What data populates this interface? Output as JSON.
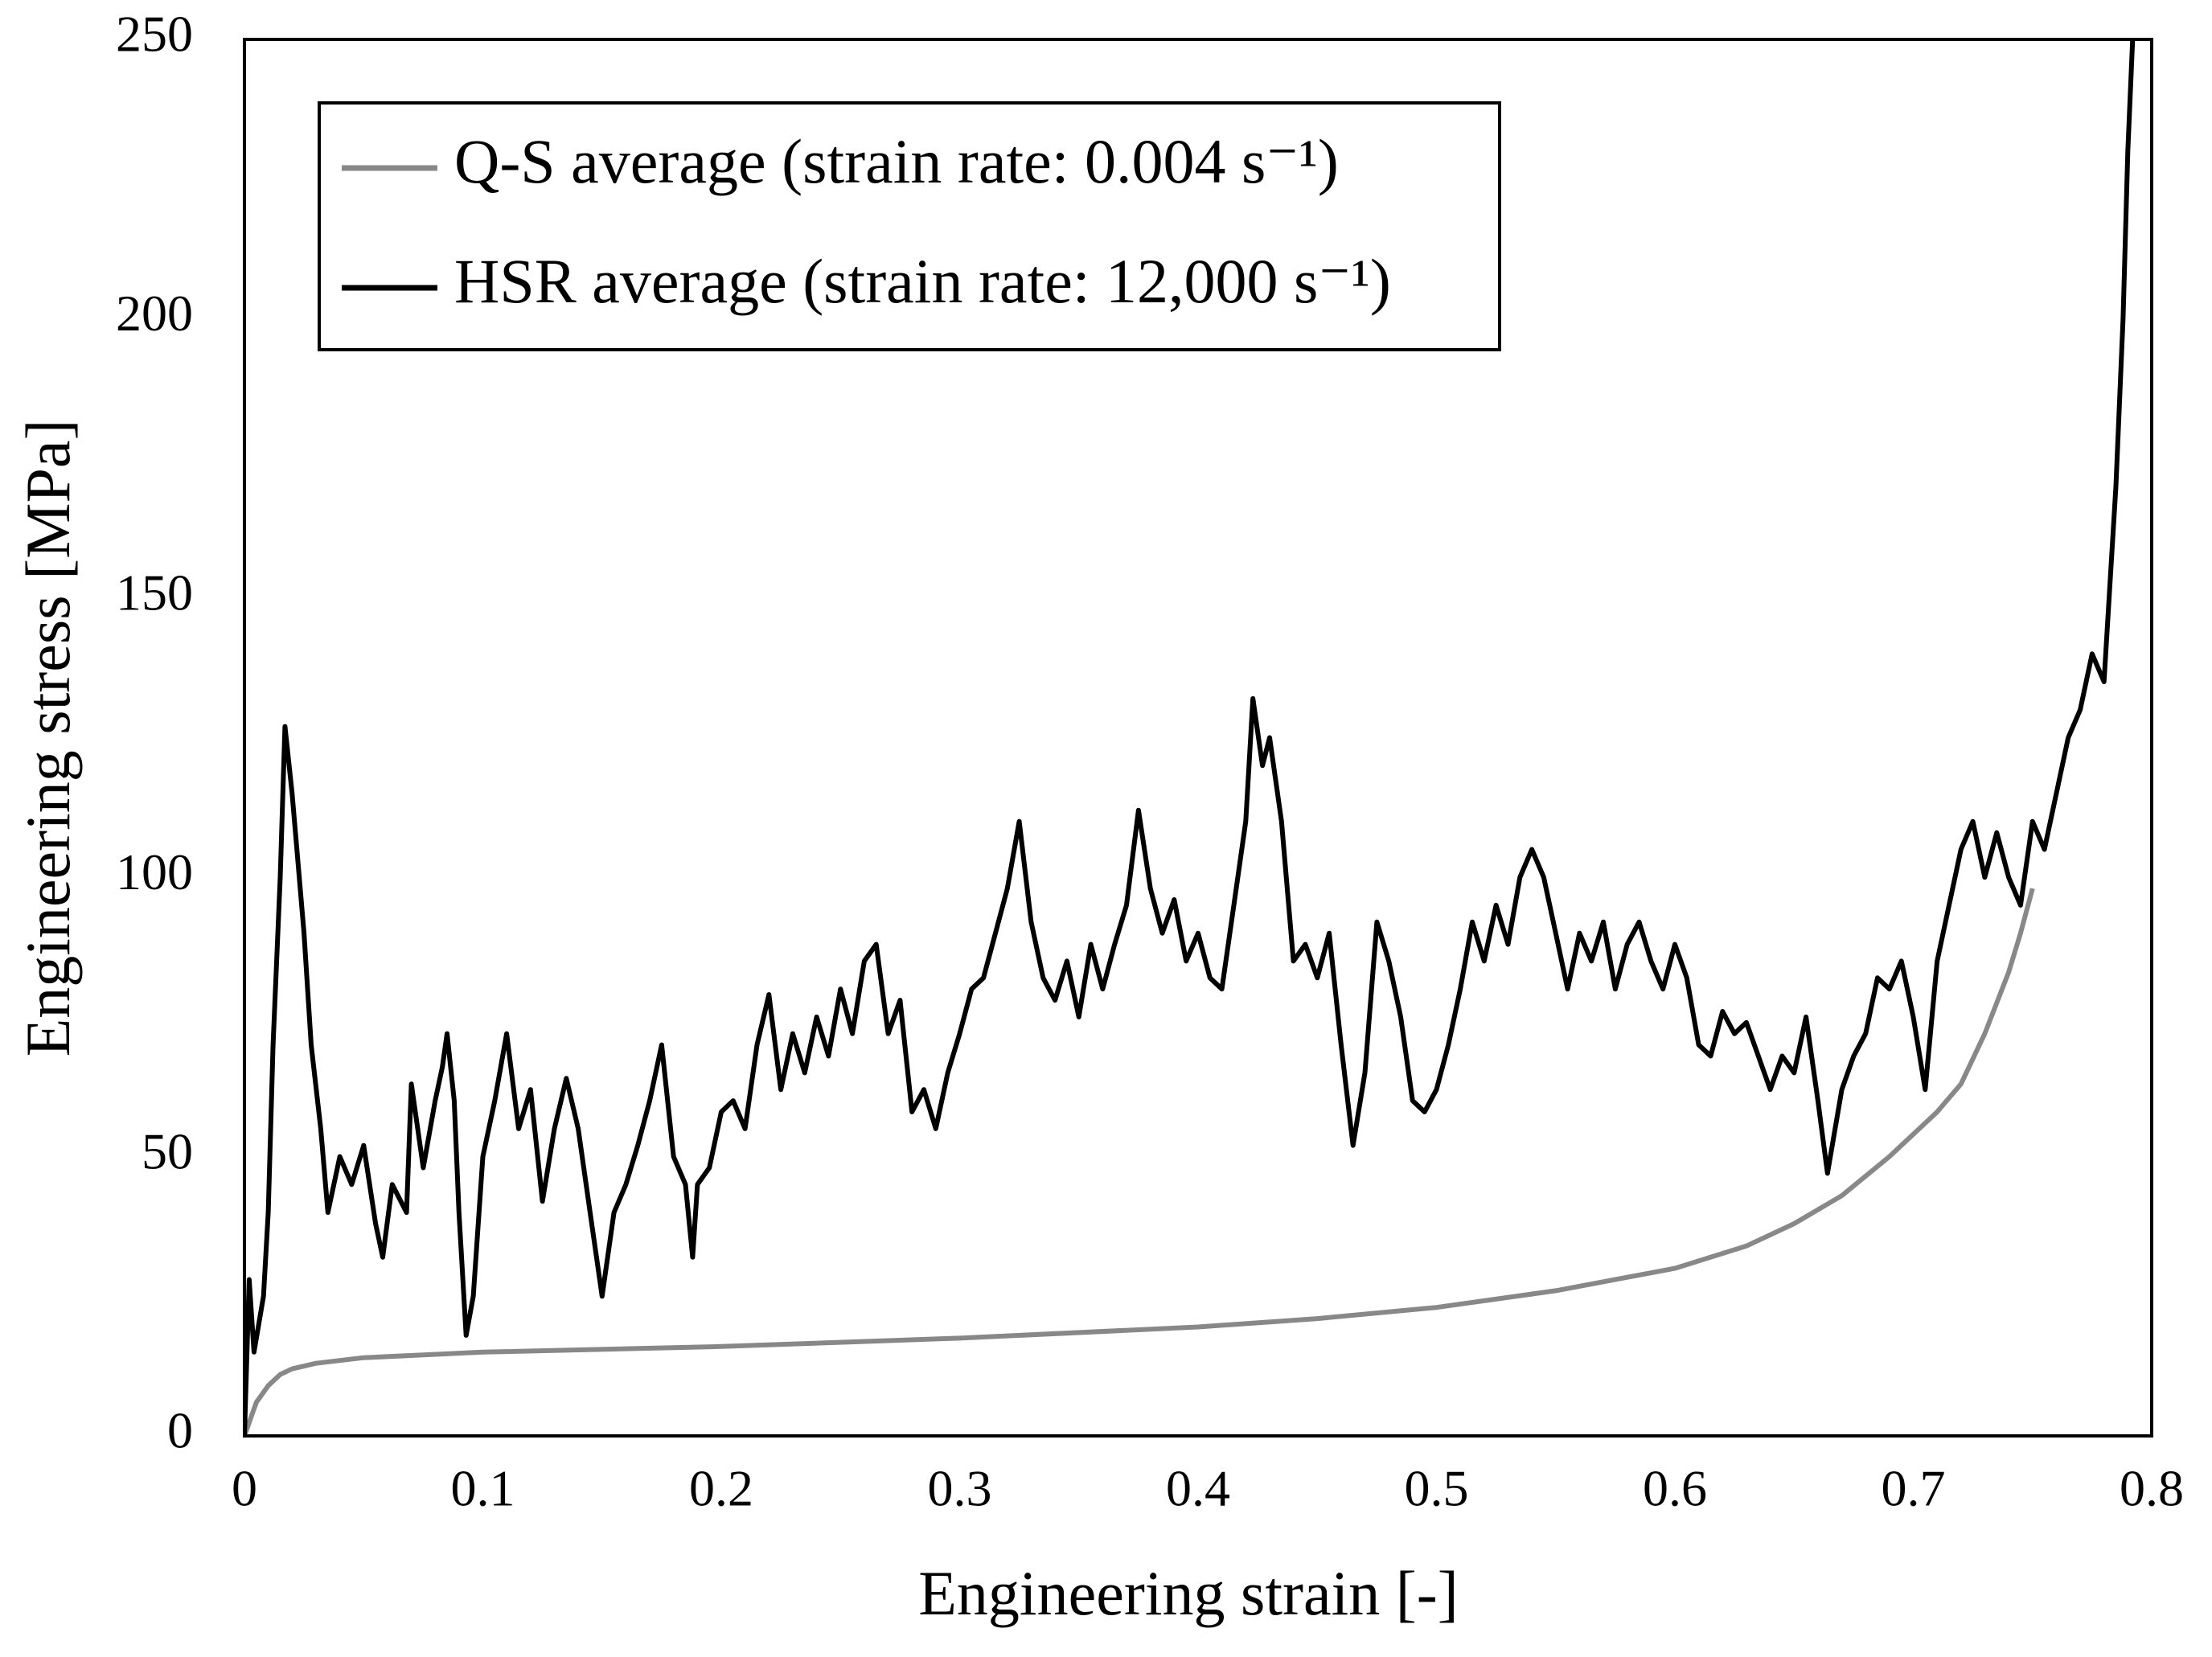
{
  "chart_data": {
    "type": "line",
    "xlabel": "Engineering  strain [-]",
    "ylabel": "Engineering  stress [MPa]",
    "xlim": [
      0,
      0.8
    ],
    "xticks": [
      0,
      0.1,
      0.2,
      0.3,
      0.4,
      0.5,
      0.6,
      0.7,
      0.8
    ],
    "ylim": [
      0,
      250
    ],
    "yticks": [
      0,
      50,
      100,
      150,
      200,
      250
    ],
    "grid": false,
    "legend": "upper left",
    "series": [
      {
        "name": "Q-S average (strain rate: 0.004 s⁻¹)",
        "color": "#888888",
        "x": [
          0,
          0.005,
          0.01,
          0.015,
          0.02,
          0.03,
          0.05,
          0.1,
          0.2,
          0.3,
          0.4,
          0.45,
          0.5,
          0.55,
          0.6,
          0.63,
          0.65,
          0.67,
          0.69,
          0.71,
          0.72,
          0.73,
          0.74,
          0.745,
          0.75
        ],
        "values": [
          0,
          6,
          9,
          11,
          12,
          13,
          14,
          15,
          16,
          17.5,
          19.5,
          21,
          23,
          26,
          30,
          34,
          38,
          43,
          50,
          58,
          63,
          72,
          83,
          90,
          98
        ]
      },
      {
        "name": "HSR average (strain rate: 12,000 s⁻¹)",
        "color": "#000000",
        "x": [
          0,
          0.002,
          0.004,
          0.008,
          0.01,
          0.012,
          0.015,
          0.017,
          0.02,
          0.025,
          0.028,
          0.032,
          0.035,
          0.04,
          0.045,
          0.05,
          0.055,
          0.058,
          0.062,
          0.068,
          0.07,
          0.075,
          0.08,
          0.083,
          0.085,
          0.088,
          0.09,
          0.093,
          0.096,
          0.1,
          0.105,
          0.11,
          0.115,
          0.12,
          0.125,
          0.13,
          0.135,
          0.14,
          0.145,
          0.15,
          0.155,
          0.16,
          0.165,
          0.17,
          0.175,
          0.18,
          0.185,
          0.188,
          0.19,
          0.195,
          0.2,
          0.205,
          0.21,
          0.215,
          0.22,
          0.225,
          0.23,
          0.235,
          0.24,
          0.245,
          0.25,
          0.255,
          0.26,
          0.265,
          0.27,
          0.275,
          0.28,
          0.285,
          0.29,
          0.295,
          0.3,
          0.305,
          0.31,
          0.315,
          0.32,
          0.325,
          0.33,
          0.335,
          0.34,
          0.345,
          0.35,
          0.355,
          0.36,
          0.365,
          0.37,
          0.375,
          0.38,
          0.385,
          0.39,
          0.395,
          0.4,
          0.405,
          0.41,
          0.415,
          0.42,
          0.423,
          0.427,
          0.43,
          0.435,
          0.44,
          0.445,
          0.45,
          0.455,
          0.46,
          0.465,
          0.47,
          0.475,
          0.48,
          0.485,
          0.49,
          0.495,
          0.5,
          0.505,
          0.51,
          0.515,
          0.52,
          0.525,
          0.53,
          0.535,
          0.54,
          0.545,
          0.55,
          0.555,
          0.56,
          0.565,
          0.57,
          0.575,
          0.58,
          0.585,
          0.59,
          0.595,
          0.6,
          0.605,
          0.61,
          0.615,
          0.62,
          0.625,
          0.63,
          0.635,
          0.64,
          0.645,
          0.65,
          0.655,
          0.66,
          0.664,
          0.67,
          0.675,
          0.68,
          0.685,
          0.69,
          0.695,
          0.7,
          0.705,
          0.71,
          0.715,
          0.72,
          0.725,
          0.73,
          0.735,
          0.74,
          0.745,
          0.75,
          0.755,
          0.76,
          0.765,
          0.77,
          0.775,
          0.78,
          0.785,
          0.788,
          0.79,
          0.792
        ],
        "values": [
          0,
          28,
          15,
          25,
          40,
          70,
          100,
          127,
          115,
          90,
          70,
          55,
          40,
          50,
          45,
          52,
          38,
          32,
          45,
          40,
          63,
          48,
          60,
          66,
          72,
          60,
          40,
          18,
          25,
          50,
          60,
          72,
          55,
          62,
          42,
          55,
          64,
          55,
          40,
          25,
          40,
          45,
          52,
          60,
          70,
          50,
          45,
          32,
          45,
          48,
          58,
          60,
          55,
          70,
          79,
          62,
          72,
          65,
          75,
          68,
          80,
          72,
          85,
          88,
          72,
          78,
          58,
          62,
          55,
          65,
          72,
          80,
          82,
          90,
          98,
          110,
          92,
          82,
          78,
          85,
          75,
          88,
          80,
          88,
          95,
          112,
          98,
          90,
          96,
          85,
          90,
          82,
          80,
          95,
          110,
          132,
          120,
          125,
          110,
          85,
          88,
          82,
          90,
          70,
          52,
          65,
          92,
          85,
          75,
          60,
          58,
          62,
          70,
          80,
          92,
          85,
          95,
          88,
          100,
          105,
          100,
          90,
          80,
          90,
          85,
          92,
          80,
          88,
          92,
          85,
          80,
          88,
          82,
          70,
          68,
          76,
          72,
          74,
          68,
          62,
          68,
          65,
          75,
          60,
          47,
          62,
          68,
          72,
          82,
          80,
          85,
          75,
          62,
          85,
          95,
          105,
          110,
          100,
          108,
          100,
          95,
          110,
          105,
          115,
          125,
          130,
          140,
          135,
          170,
          200,
          230,
          250
        ]
      }
    ]
  }
}
